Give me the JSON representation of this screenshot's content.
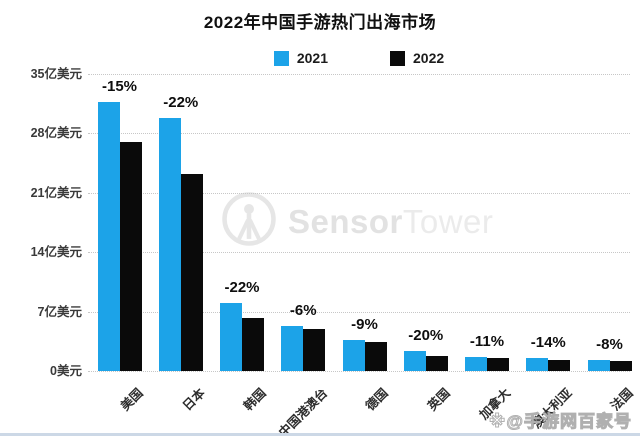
{
  "title": "2022年中国手游热门出海市场",
  "legend": {
    "items": [
      {
        "label": "2021",
        "color": "#1ca3e8"
      },
      {
        "label": "2022",
        "color": "#0a0a0a"
      }
    ]
  },
  "brand_watermark": {
    "name": "SensorTower",
    "bold_part": "Sensor",
    "light_part": "Tower",
    "icon": "sensor-tower-circle-antenna-logo"
  },
  "footer_watermark": {
    "text": "※@手游网百家号"
  },
  "colors": {
    "series_2021": "#1ca3e8",
    "series_2022": "#0a0a0a",
    "gridline": "#c7c7c7",
    "watermark_gray": "#e6e6e6"
  },
  "chart_data": {
    "type": "bar",
    "title": "2022年中国手游热门出海市场",
    "unit": "亿美元",
    "categories": [
      "美国",
      "日本",
      "韩国",
      "中国港澳台",
      "德国",
      "英国",
      "加拿大",
      "澳大利亚",
      "法国"
    ],
    "series": [
      {
        "name": "2021",
        "color": "#1ca3e8",
        "values": [
          31.7,
          29.8,
          8.0,
          5.3,
          3.7,
          2.3,
          1.7,
          1.5,
          1.3
        ]
      },
      {
        "name": "2022",
        "color": "#0a0a0a",
        "values": [
          27.0,
          23.2,
          6.2,
          5.0,
          3.4,
          1.8,
          1.5,
          1.3,
          1.2
        ]
      }
    ],
    "yoy_change_labels": [
      "-15%",
      "-22%",
      "-22%",
      "-6%",
      "-9%",
      "-20%",
      "-11%",
      "-14%",
      "-8%"
    ],
    "y_tick_labels": [
      "35亿美元",
      "28亿美元",
      "21亿美元",
      "14亿美元",
      "7亿美元",
      "0美元"
    ],
    "ylim": [
      0,
      35
    ],
    "y_tick_step": 7,
    "grid": "horizontal-dotted",
    "legend_position": "top-center",
    "xlabel_rotation_deg": -45
  }
}
